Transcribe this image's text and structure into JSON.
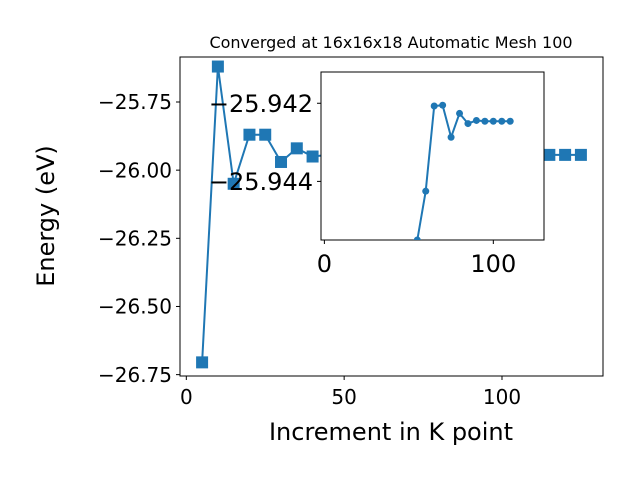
{
  "chart_data": [
    {
      "type": "line",
      "title": "Converged at 16x16x18 Automatic Mesh 100",
      "xlabel": "Increment in K point",
      "ylabel": "Energy (eV)",
      "xlim": [
        -2,
        132
      ],
      "ylim": [
        -26.755,
        -25.585
      ],
      "xticks": [
        "0",
        "50",
        "100"
      ],
      "yticks": [
        "−25.75",
        "−26.00",
        "−26.25",
        "−26.50",
        "−26.75"
      ],
      "marker": "square",
      "color": "#1f77b4",
      "grid": false,
      "series": [
        {
          "x": [
            5,
            10,
            15,
            20,
            25,
            30,
            35,
            40,
            45,
            50,
            55,
            60,
            65,
            70,
            75,
            80,
            85,
            90,
            95,
            100,
            105,
            110,
            115,
            120,
            125
          ],
          "y": [
            -26.705,
            -25.62,
            -26.05,
            -25.87,
            -25.87,
            -25.97,
            -25.92,
            -25.95,
            -25.944,
            -25.944,
            -25.944,
            -25.944,
            -25.944,
            -25.944,
            -25.944,
            -25.944,
            -25.944,
            -25.944,
            -25.944,
            -25.944,
            -25.944,
            -25.944,
            -25.944,
            -25.944,
            -25.944
          ]
        }
      ]
    },
    {
      "type": "line",
      "title": "",
      "xlabel": "",
      "ylabel": "",
      "xlim": [
        -2,
        130
      ],
      "ylim": [
        -25.9455,
        -25.9412
      ],
      "xticks": [
        "0",
        "100"
      ],
      "yticks": [
        "−25.944",
        "−25.942"
      ],
      "marker": "circle",
      "color": "#1f77b4",
      "grid": false,
      "series": [
        {
          "x": [
            55,
            60,
            65,
            70,
            75,
            80,
            85,
            90,
            95,
            100,
            105,
            110
          ],
          "y": [
            -25.9455,
            -25.94425,
            -25.94207,
            -25.94205,
            -25.94287,
            -25.94226,
            -25.94252,
            -25.94244,
            -25.94246,
            -25.94246,
            -25.94246,
            -25.94246
          ]
        }
      ]
    }
  ]
}
